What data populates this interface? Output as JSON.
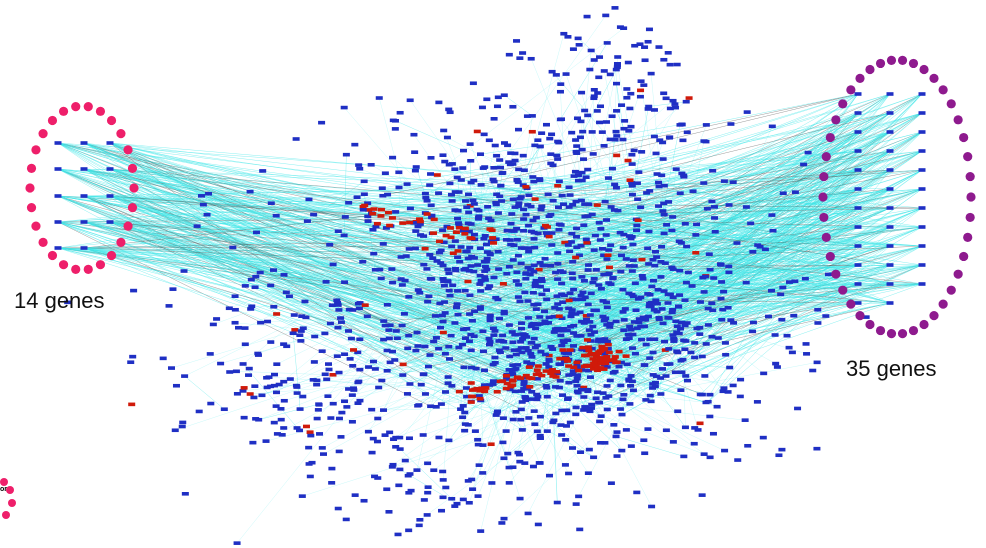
{
  "labels": {
    "left_group": "14 genes",
    "right_group": "35 genes",
    "corner_fragment": "or"
  },
  "colors": {
    "node": "#1f2fc4",
    "node_highlight": "#d01a0a",
    "edge": "#3ee6e8",
    "edge_dark": "#555555",
    "left_ring": "#ee1f6a",
    "right_ring": "#8e1a8e",
    "background": "#ffffff"
  },
  "groups": {
    "left": {
      "gene_count": 14
    },
    "right": {
      "gene_count": 35
    }
  }
}
